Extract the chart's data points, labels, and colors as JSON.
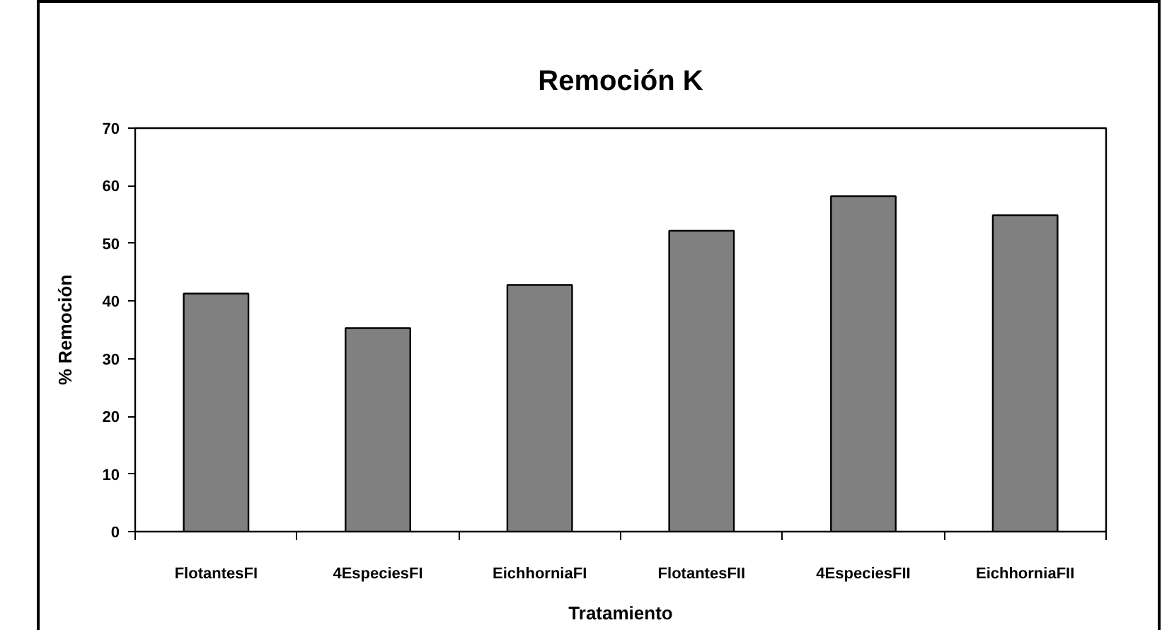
{
  "chart_data": {
    "type": "bar",
    "title": "Remoción K",
    "xlabel": "Tratamiento",
    "ylabel": "% Remoción",
    "categories": [
      "FlotantesFI",
      "4EspeciesFI",
      "EichhorniaFI",
      "FlotantesFII",
      "4EspeciesFII",
      "EichhorniaFII"
    ],
    "values": [
      41.3,
      35.3,
      42.8,
      52.2,
      58.2,
      54.9
    ],
    "color": "#808080",
    "ylim": [
      0,
      70
    ],
    "yticks": [
      0,
      10,
      20,
      30,
      40,
      50,
      60,
      70
    ]
  }
}
